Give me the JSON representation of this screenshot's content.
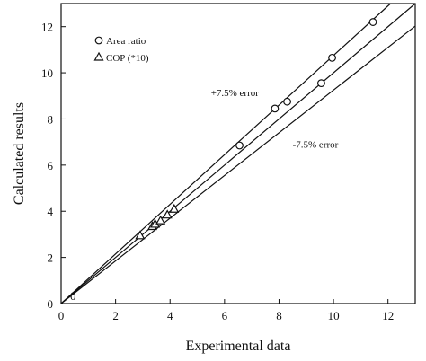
{
  "chart_data": {
    "type": "scatter",
    "xlabel": "Experimental  data",
    "ylabel": "Calculated results",
    "xlim": [
      0,
      13
    ],
    "ylim": [
      0,
      13
    ],
    "xticks": [
      0,
      2,
      4,
      6,
      8,
      10,
      12
    ],
    "yticks": [
      0,
      2,
      4,
      6,
      8,
      10,
      12
    ],
    "origin_label": "0",
    "grid": false,
    "legend_position": "top-left",
    "series": [
      {
        "name": "Area ratio",
        "marker": "circle",
        "x": [
          6.55,
          7.85,
          8.3,
          9.55,
          9.95,
          11.45
        ],
        "y": [
          6.85,
          8.45,
          8.75,
          9.55,
          10.65,
          12.2
        ]
      },
      {
        "name": "COP (*10)",
        "marker": "triangle",
        "x": [
          2.9,
          3.35,
          3.45,
          3.65,
          3.9,
          4.15
        ],
        "y": [
          2.95,
          3.35,
          3.45,
          3.6,
          3.85,
          4.1
        ]
      }
    ],
    "lines": [
      {
        "label": "",
        "slope": 1.0
      },
      {
        "label": "+7.5% error",
        "slope": 1.075,
        "label_at": [
          5.5,
          9.0
        ]
      },
      {
        "label": "-7.5% error",
        "slope": 0.925,
        "label_at": [
          8.5,
          6.75
        ]
      }
    ]
  }
}
